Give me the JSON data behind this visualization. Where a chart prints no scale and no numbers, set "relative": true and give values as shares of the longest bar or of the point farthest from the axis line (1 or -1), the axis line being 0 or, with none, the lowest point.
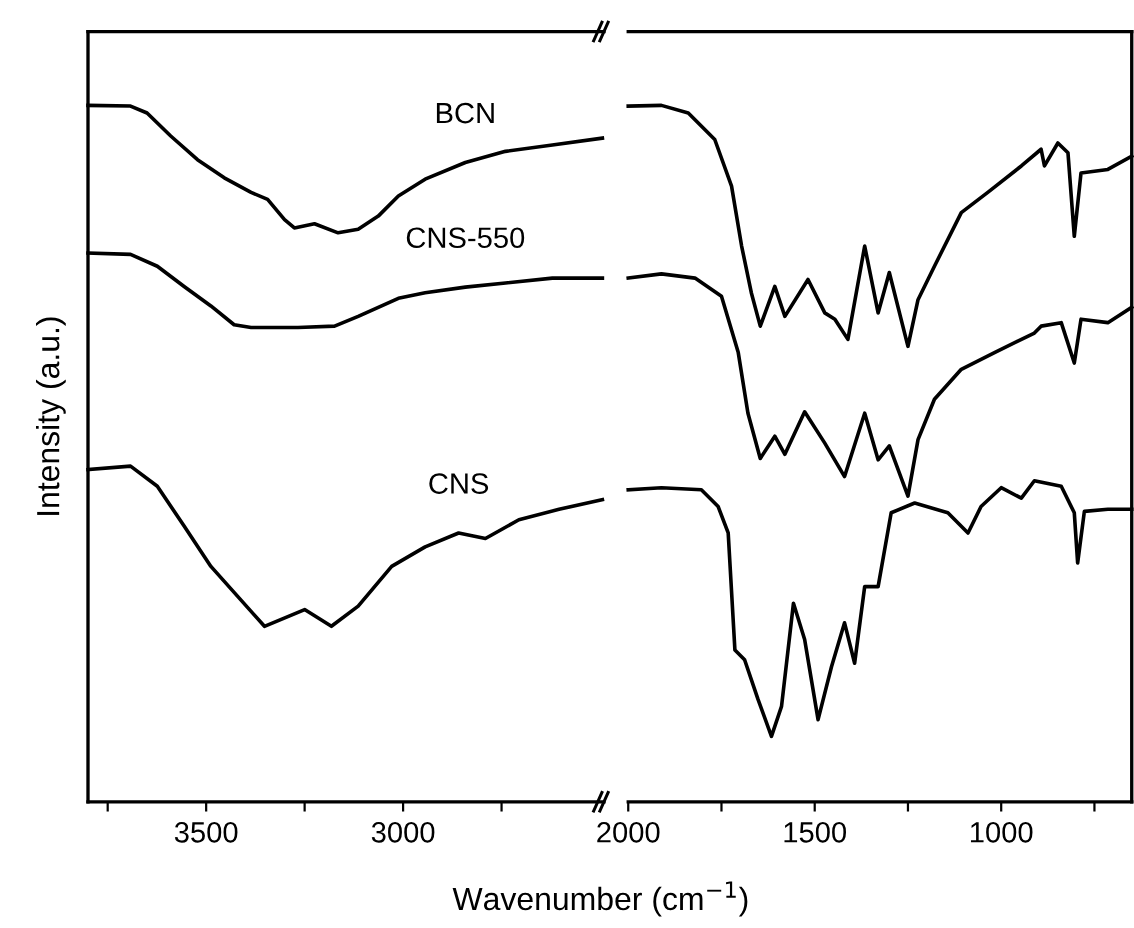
{
  "chart_data": [
    {
      "type": "line",
      "relative": true,
      "ylabel": "Intensity (a.u.)",
      "xlabel": "Wavenumber (cm$^{−1}$)",
      "tick_labels": "x",
      "line_style": "solid",
      "marker": "none",
      "xlim": [
        3800,
        2490
      ],
      "xticks": [
        {
          "value": 3750,
          "label": null
        },
        3500,
        {
          "value": 3250,
          "label": null
        },
        3000,
        {
          "value": 2750,
          "label": null
        }
      ],
      "series": [
        {
          "name": "BCN",
          "color": "#000000",
          "x": [
            3800,
            3692,
            3650,
            3590,
            3522,
            3454,
            3386,
            3344,
            3301,
            3276,
            3225,
            3165,
            3114,
            3063,
            3012,
            2944,
            2842,
            2740,
            2621,
            2494
          ],
          "values": [
            1.0,
            0.999,
            0.989,
            0.956,
            0.922,
            0.896,
            0.875,
            0.865,
            0.836,
            0.824,
            0.83,
            0.817,
            0.822,
            0.841,
            0.87,
            0.894,
            0.918,
            0.934,
            0.943,
            0.953
          ]
        },
        {
          "name": "CNS-550",
          "color": "#000000",
          "x": [
            3800,
            3692,
            3624,
            3556,
            3488,
            3429,
            3386,
            3267,
            3174,
            3114,
            3012,
            2944,
            2842,
            2740,
            2621,
            2494
          ],
          "values": [
            0.788,
            0.786,
            0.769,
            0.74,
            0.712,
            0.685,
            0.681,
            0.681,
            0.683,
            0.697,
            0.723,
            0.731,
            0.739,
            0.745,
            0.752,
            0.752
          ]
        },
        {
          "name": "CNS",
          "color": "#000000",
          "x": [
            3800,
            3692,
            3624,
            3556,
            3488,
            3420,
            3352,
            3250,
            3182,
            3114,
            3029,
            2944,
            2859,
            2791,
            2706,
            2604,
            2494
          ],
          "values": [
            0.477,
            0.482,
            0.453,
            0.396,
            0.338,
            0.295,
            0.252,
            0.276,
            0.252,
            0.281,
            0.338,
            0.366,
            0.386,
            0.378,
            0.405,
            0.42,
            0.434
          ]
        }
      ]
    },
    {
      "type": "line",
      "relative": true,
      "tick_labels": "x",
      "line_style": "solid",
      "marker": "none",
      "xlim": [
        2000,
        650
      ],
      "xticks": [
        2000,
        {
          "value": 1750,
          "label": null
        },
        1500,
        {
          "value": 1250,
          "label": null
        },
        1000,
        {
          "value": 750,
          "label": null
        }
      ],
      "series": [
        {
          "color": "#000000",
          "x": [
            2000,
            1911,
            1839,
            1768,
            1723,
            1696,
            1670,
            1646,
            1607,
            1580,
            1518,
            1473,
            1446,
            1411,
            1366,
            1330,
            1300,
            1250,
            1223,
            1179,
            1107,
            1036,
            946,
            893,
            884,
            848,
            821,
            804,
            786,
            714,
            650
          ],
          "values": [
            0.999,
            1.0,
            0.989,
            0.951,
            0.884,
            0.798,
            0.731,
            0.683,
            0.74,
            0.697,
            0.75,
            0.702,
            0.693,
            0.664,
            0.798,
            0.702,
            0.76,
            0.654,
            0.721,
            0.769,
            0.846,
            0.875,
            0.913,
            0.937,
            0.913,
            0.946,
            0.932,
            0.812,
            0.903,
            0.908,
            0.927
          ]
        },
        {
          "color": "#000000",
          "x": [
            2000,
            1911,
            1821,
            1750,
            1705,
            1679,
            1646,
            1607,
            1580,
            1527,
            1473,
            1420,
            1366,
            1330,
            1300,
            1250,
            1223,
            1179,
            1107,
            1018,
            911,
            893,
            839,
            804,
            786,
            714,
            650
          ],
          "values": [
            0.752,
            0.758,
            0.752,
            0.726,
            0.645,
            0.558,
            0.493,
            0.525,
            0.499,
            0.56,
            0.515,
            0.467,
            0.558,
            0.491,
            0.511,
            0.439,
            0.52,
            0.578,
            0.621,
            0.645,
            0.673,
            0.683,
            0.688,
            0.63,
            0.693,
            0.688,
            0.71
          ]
        },
        {
          "color": "#000000",
          "x": [
            2000,
            1911,
            1804,
            1759,
            1732,
            1714,
            1688,
            1652,
            1616,
            1589,
            1557,
            1527,
            1491,
            1455,
            1420,
            1393,
            1366,
            1330,
            1295,
            1232,
            1143,
            1089,
            1054,
            1000,
            946,
            911,
            839,
            804,
            795,
            777,
            714,
            650
          ],
          "values": [
            0.448,
            0.451,
            0.448,
            0.424,
            0.386,
            0.218,
            0.204,
            0.147,
            0.094,
            0.137,
            0.285,
            0.233,
            0.118,
            0.194,
            0.257,
            0.199,
            0.309,
            0.309,
            0.415,
            0.429,
            0.415,
            0.386,
            0.424,
            0.451,
            0.436,
            0.461,
            0.453,
            0.415,
            0.343,
            0.417,
            0.42,
            0.42
          ]
        }
      ]
    }
  ]
}
